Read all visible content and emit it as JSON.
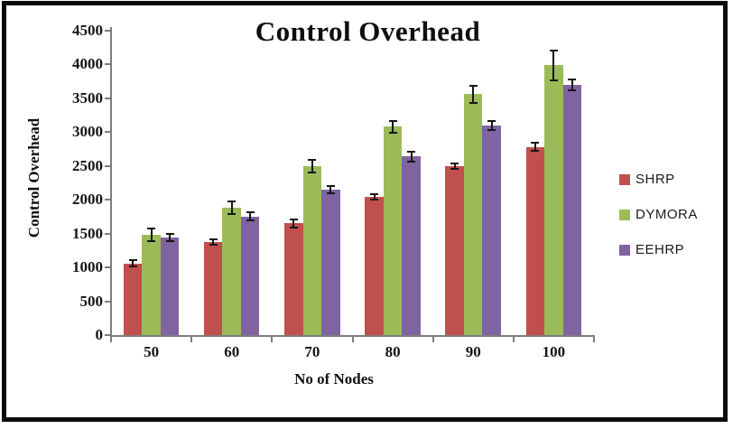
{
  "frame": {
    "background": "#ffffff",
    "border_color": "#0c0c0c"
  },
  "chart_data": {
    "type": "bar",
    "title": "Control Overhead",
    "xlabel": "No of Nodes",
    "ylabel": "Control Overhead",
    "categories": [
      "50",
      "60",
      "70",
      "80",
      "90",
      "100"
    ],
    "series": [
      {
        "name": "SHRP",
        "color": "#C0504D",
        "values": [
          1060,
          1370,
          1650,
          2040,
          2500,
          2780
        ],
        "errors": [
          45,
          40,
          55,
          40,
          40,
          60
        ]
      },
      {
        "name": "DYMORA",
        "color": "#9BBB59",
        "values": [
          1480,
          1880,
          2500,
          3080,
          3560,
          3990
        ],
        "errors": [
          90,
          90,
          95,
          90,
          130,
          220
        ]
      },
      {
        "name": "EEHRP",
        "color": "#8064A2",
        "values": [
          1440,
          1750,
          2150,
          2640,
          3100,
          3700
        ],
        "errors": [
          50,
          60,
          50,
          70,
          65,
          80
        ]
      }
    ],
    "ylim": [
      0,
      4500
    ],
    "ytick_step": 500,
    "yticks": [
      0,
      500,
      1000,
      1500,
      2000,
      2500,
      3000,
      3500,
      4000,
      4500
    ],
    "grid": false,
    "error_bars": true,
    "legend_position": "right"
  }
}
